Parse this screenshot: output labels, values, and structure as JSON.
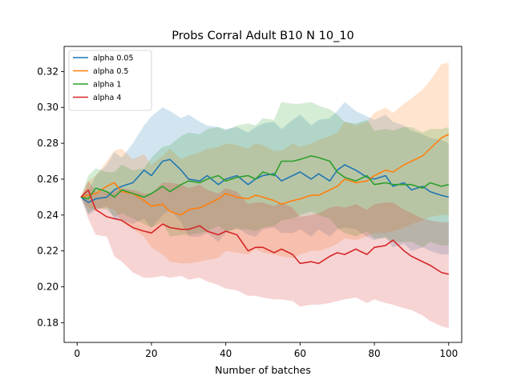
{
  "chart_data": {
    "type": "line",
    "title": "Probs Corral Adult B10 N 10_10",
    "xlabel": "Number of batches",
    "ylabel": "",
    "xlim": [
      -3.5,
      103.5
    ],
    "ylim": [
      0.169,
      0.334
    ],
    "xticks": [
      0,
      20,
      40,
      60,
      80,
      100
    ],
    "yticks": [
      0.18,
      0.2,
      0.22,
      0.24,
      0.26,
      0.28,
      0.3,
      0.32
    ],
    "ytick_labels": [
      "0.18",
      "0.20",
      "0.22",
      "0.24",
      "0.26",
      "0.28",
      "0.30",
      "0.32"
    ],
    "grid": false,
    "legend_position": "upper-left",
    "band_opacity": 0.2,
    "series": [
      {
        "name": "alpha 0.05",
        "color": "#1f77b4",
        "x": [
          1,
          3,
          5,
          8,
          10,
          12,
          15,
          18,
          20,
          23,
          25,
          28,
          30,
          33,
          35,
          38,
          40,
          43,
          46,
          48,
          50,
          53,
          55,
          58,
          60,
          63,
          65,
          68,
          70,
          72,
          75,
          78,
          80,
          83,
          85,
          88,
          90,
          93,
          95,
          98,
          100
        ],
        "values": [
          0.25,
          0.247,
          0.249,
          0.25,
          0.254,
          0.256,
          0.258,
          0.265,
          0.262,
          0.27,
          0.271,
          0.265,
          0.26,
          0.259,
          0.262,
          0.257,
          0.26,
          0.262,
          0.257,
          0.26,
          0.262,
          0.263,
          0.259,
          0.262,
          0.264,
          0.26,
          0.263,
          0.259,
          0.265,
          0.268,
          0.265,
          0.261,
          0.26,
          0.262,
          0.256,
          0.258,
          0.254,
          0.256,
          0.253,
          0.251,
          0.25
        ],
        "upper": [
          0.25,
          0.253,
          0.262,
          0.268,
          0.275,
          0.272,
          0.28,
          0.29,
          0.295,
          0.3,
          0.298,
          0.294,
          0.296,
          0.292,
          0.29,
          0.289,
          0.288,
          0.289,
          0.286,
          0.289,
          0.291,
          0.292,
          0.288,
          0.293,
          0.296,
          0.29,
          0.293,
          0.294,
          0.298,
          0.303,
          0.298,
          0.295,
          0.293,
          0.296,
          0.292,
          0.29,
          0.287,
          0.285,
          0.283,
          0.282,
          0.28
        ],
        "lower": [
          0.25,
          0.24,
          0.243,
          0.245,
          0.238,
          0.237,
          0.235,
          0.238,
          0.233,
          0.24,
          0.243,
          0.236,
          0.228,
          0.228,
          0.23,
          0.225,
          0.23,
          0.233,
          0.229,
          0.228,
          0.232,
          0.233,
          0.23,
          0.23,
          0.232,
          0.228,
          0.232,
          0.228,
          0.232,
          0.233,
          0.232,
          0.228,
          0.226,
          0.228,
          0.222,
          0.224,
          0.22,
          0.222,
          0.22,
          0.218,
          0.218
        ]
      },
      {
        "name": "alpha 0.5",
        "color": "#ff7f0e",
        "x": [
          1,
          3,
          5,
          8,
          10,
          12,
          15,
          18,
          20,
          23,
          25,
          28,
          30,
          33,
          35,
          38,
          40,
          43,
          46,
          48,
          50,
          53,
          55,
          58,
          60,
          63,
          65,
          68,
          70,
          72,
          75,
          78,
          80,
          83,
          85,
          88,
          90,
          93,
          95,
          98,
          100
        ],
        "values": [
          0.25,
          0.251,
          0.252,
          0.256,
          0.258,
          0.253,
          0.252,
          0.248,
          0.245,
          0.246,
          0.242,
          0.24,
          0.243,
          0.244,
          0.246,
          0.249,
          0.252,
          0.25,
          0.249,
          0.251,
          0.25,
          0.248,
          0.246,
          0.248,
          0.249,
          0.251,
          0.251,
          0.254,
          0.256,
          0.26,
          0.258,
          0.259,
          0.262,
          0.265,
          0.264,
          0.268,
          0.27,
          0.273,
          0.277,
          0.283,
          0.285
        ],
        "upper": [
          0.25,
          0.259,
          0.262,
          0.27,
          0.276,
          0.277,
          0.271,
          0.274,
          0.268,
          0.273,
          0.277,
          0.271,
          0.273,
          0.275,
          0.277,
          0.278,
          0.28,
          0.279,
          0.277,
          0.28,
          0.279,
          0.276,
          0.276,
          0.28,
          0.278,
          0.28,
          0.282,
          0.284,
          0.286,
          0.292,
          0.29,
          0.292,
          0.297,
          0.3,
          0.297,
          0.302,
          0.305,
          0.31,
          0.315,
          0.324,
          0.325
        ],
        "lower": [
          0.25,
          0.244,
          0.243,
          0.244,
          0.243,
          0.236,
          0.232,
          0.228,
          0.222,
          0.218,
          0.214,
          0.213,
          0.213,
          0.214,
          0.215,
          0.216,
          0.22,
          0.219,
          0.218,
          0.221,
          0.219,
          0.218,
          0.217,
          0.216,
          0.218,
          0.22,
          0.22,
          0.222,
          0.224,
          0.227,
          0.226,
          0.228,
          0.23,
          0.23,
          0.231,
          0.233,
          0.235,
          0.237,
          0.239,
          0.24,
          0.24
        ]
      },
      {
        "name": "alpha 1",
        "color": "#2ca02c",
        "x": [
          1,
          3,
          5,
          8,
          10,
          12,
          15,
          18,
          20,
          23,
          25,
          28,
          30,
          33,
          35,
          38,
          40,
          43,
          46,
          48,
          50,
          53,
          55,
          58,
          60,
          63,
          65,
          68,
          70,
          72,
          75,
          78,
          80,
          83,
          85,
          88,
          90,
          93,
          95,
          98,
          100
        ],
        "values": [
          0.25,
          0.249,
          0.255,
          0.253,
          0.25,
          0.254,
          0.252,
          0.25,
          0.252,
          0.256,
          0.253,
          0.257,
          0.259,
          0.258,
          0.26,
          0.262,
          0.259,
          0.261,
          0.262,
          0.26,
          0.264,
          0.262,
          0.27,
          0.27,
          0.271,
          0.273,
          0.272,
          0.27,
          0.264,
          0.261,
          0.259,
          0.262,
          0.257,
          0.258,
          0.257,
          0.257,
          0.257,
          0.255,
          0.258,
          0.256,
          0.257
        ],
        "upper": [
          0.25,
          0.262,
          0.266,
          0.264,
          0.264,
          0.268,
          0.265,
          0.266,
          0.272,
          0.278,
          0.279,
          0.284,
          0.286,
          0.285,
          0.288,
          0.289,
          0.287,
          0.29,
          0.291,
          0.29,
          0.294,
          0.293,
          0.303,
          0.302,
          0.302,
          0.303,
          0.301,
          0.299,
          0.296,
          0.292,
          0.291,
          0.293,
          0.287,
          0.288,
          0.287,
          0.289,
          0.289,
          0.286,
          0.288,
          0.288,
          0.289
        ],
        "lower": [
          0.25,
          0.241,
          0.244,
          0.243,
          0.239,
          0.241,
          0.238,
          0.235,
          0.233,
          0.236,
          0.228,
          0.229,
          0.229,
          0.23,
          0.231,
          0.234,
          0.231,
          0.232,
          0.232,
          0.231,
          0.233,
          0.234,
          0.237,
          0.238,
          0.24,
          0.242,
          0.24,
          0.238,
          0.233,
          0.23,
          0.228,
          0.231,
          0.227,
          0.227,
          0.225,
          0.225,
          0.225,
          0.222,
          0.225,
          0.223,
          0.223
        ]
      },
      {
        "name": "alpha 4",
        "color": "#d62728",
        "x": [
          1,
          3,
          5,
          8,
          10,
          12,
          15,
          18,
          20,
          23,
          25,
          28,
          30,
          33,
          35,
          38,
          40,
          43,
          46,
          48,
          50,
          53,
          55,
          58,
          60,
          63,
          65,
          68,
          70,
          72,
          75,
          78,
          80,
          83,
          85,
          88,
          90,
          93,
          95,
          98,
          100
        ],
        "values": [
          0.25,
          0.254,
          0.243,
          0.239,
          0.238,
          0.237,
          0.233,
          0.231,
          0.23,
          0.235,
          0.233,
          0.232,
          0.232,
          0.234,
          0.231,
          0.229,
          0.231,
          0.229,
          0.22,
          0.222,
          0.222,
          0.219,
          0.221,
          0.218,
          0.213,
          0.214,
          0.213,
          0.217,
          0.219,
          0.218,
          0.221,
          0.218,
          0.222,
          0.223,
          0.226,
          0.22,
          0.217,
          0.214,
          0.212,
          0.208,
          0.207
        ],
        "upper": [
          0.25,
          0.259,
          0.253,
          0.253,
          0.253,
          0.255,
          0.254,
          0.252,
          0.252,
          0.258,
          0.258,
          0.257,
          0.255,
          0.257,
          0.254,
          0.252,
          0.255,
          0.253,
          0.246,
          0.247,
          0.247,
          0.245,
          0.247,
          0.244,
          0.239,
          0.24,
          0.241,
          0.244,
          0.245,
          0.244,
          0.246,
          0.243,
          0.246,
          0.247,
          0.247,
          0.243,
          0.241,
          0.238,
          0.237,
          0.236,
          0.236
        ],
        "lower": [
          0.25,
          0.238,
          0.229,
          0.228,
          0.217,
          0.214,
          0.208,
          0.205,
          0.205,
          0.206,
          0.205,
          0.206,
          0.204,
          0.205,
          0.203,
          0.201,
          0.199,
          0.198,
          0.195,
          0.195,
          0.194,
          0.193,
          0.193,
          0.192,
          0.189,
          0.19,
          0.19,
          0.191,
          0.192,
          0.193,
          0.194,
          0.191,
          0.193,
          0.191,
          0.19,
          0.188,
          0.187,
          0.184,
          0.181,
          0.178,
          0.177
        ]
      }
    ]
  }
}
